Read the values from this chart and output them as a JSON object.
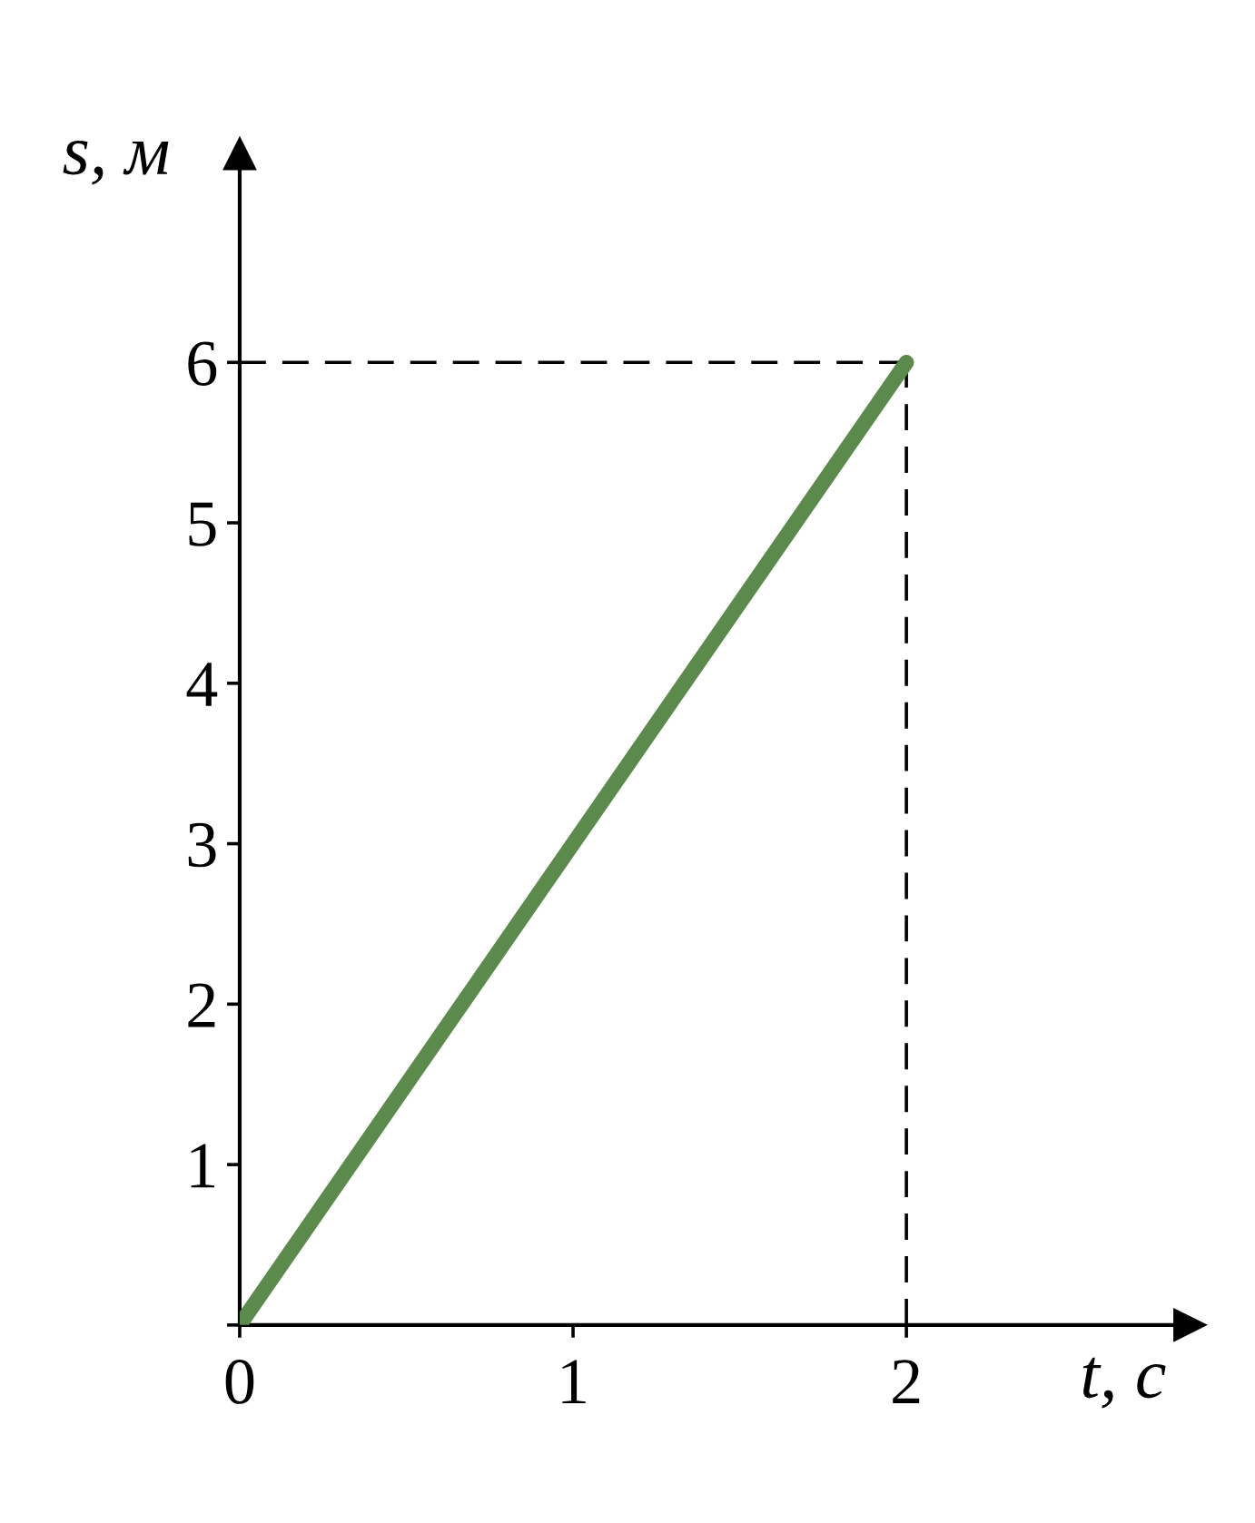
{
  "chart_data": {
    "type": "line",
    "xlabel": "t, с",
    "ylabel": "s, м",
    "x": [
      0,
      2
    ],
    "series": [
      {
        "color": "#5b8a4c",
        "values": [
          0,
          6
        ]
      }
    ],
    "xlim": [
      0,
      2.85
    ],
    "ylim": [
      0,
      7.3
    ],
    "xticks": [
      0,
      1,
      2
    ],
    "yticks": [
      {
        "value": 0,
        "label": null
      },
      1,
      2,
      3,
      4,
      5,
      6
    ],
    "ref_lines": [
      {
        "axis": "x",
        "value": 2,
        "line_style": "dashed",
        "color": "#000000"
      },
      {
        "axis": "y",
        "value": 6,
        "line_style": "dashed",
        "color": "#000000"
      }
    ],
    "grid": false,
    "legend": false,
    "marker": "none",
    "line_style": "solid"
  }
}
